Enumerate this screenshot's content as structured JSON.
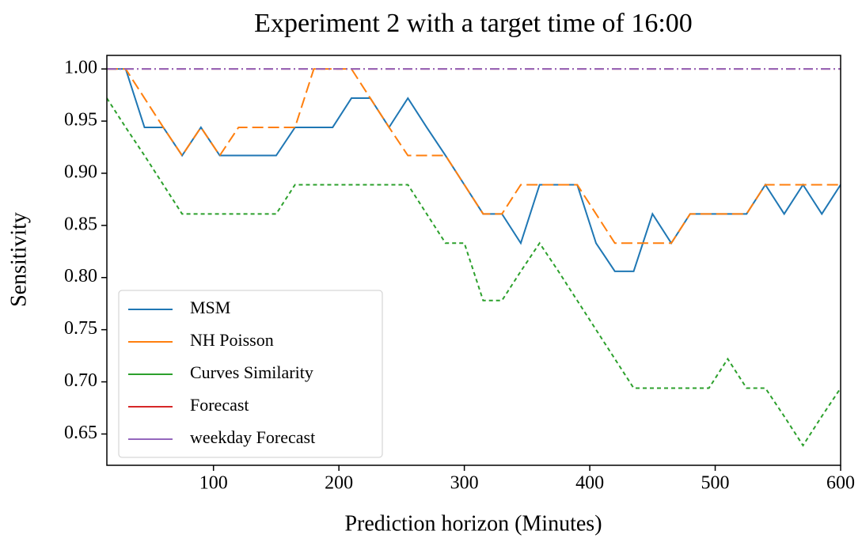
{
  "chart_data": {
    "type": "line",
    "title": "Experiment 2 with a target time of 16:00",
    "x_label": "Prediction horizon (Minutes)",
    "y_label": "Sensitivity",
    "x": [
      15,
      30,
      45,
      60,
      75,
      90,
      105,
      120,
      135,
      150,
      165,
      180,
      195,
      210,
      225,
      240,
      255,
      270,
      285,
      300,
      315,
      330,
      345,
      360,
      375,
      390,
      405,
      420,
      435,
      450,
      465,
      480,
      495,
      510,
      525,
      540,
      555,
      570,
      585,
      600
    ],
    "series": [
      {
        "name": "MSM",
        "color": "#1f77b4",
        "dash": "none",
        "values": [
          1.0,
          1.0,
          0.944,
          0.944,
          0.917,
          0.944,
          0.917,
          0.917,
          0.917,
          0.917,
          0.944,
          0.944,
          0.944,
          0.972,
          0.972,
          0.944,
          0.972,
          0.944,
          0.917,
          0.889,
          0.861,
          0.861,
          0.833,
          0.889,
          0.889,
          0.889,
          0.833,
          0.806,
          0.806,
          0.861,
          0.833,
          0.861,
          0.861,
          0.861,
          0.861,
          0.889,
          0.861,
          0.889,
          0.861,
          0.889
        ]
      },
      {
        "name": "NH Poisson",
        "color": "#ff7f0e",
        "dash": "14 6",
        "values": [
          1.0,
          1.0,
          0.972,
          0.944,
          0.917,
          0.944,
          0.917,
          0.944,
          0.944,
          0.944,
          0.944,
          1.0,
          1.0,
          1.0,
          0.972,
          0.944,
          0.917,
          0.917,
          0.917,
          0.889,
          0.861,
          0.861,
          0.889,
          0.889,
          0.889,
          0.889,
          0.861,
          0.833,
          0.833,
          0.833,
          0.833,
          0.861,
          0.861,
          0.861,
          0.861,
          0.889,
          0.889,
          0.889,
          0.889,
          0.889
        ]
      },
      {
        "name": "Curves Similarity",
        "color": "#2ca02c",
        "dash": "5 4",
        "values": [
          0.972,
          0.944,
          0.917,
          0.889,
          0.861,
          0.861,
          0.861,
          0.861,
          0.861,
          0.861,
          0.889,
          0.889,
          0.889,
          0.889,
          0.889,
          0.889,
          0.889,
          0.861,
          0.833,
          0.833,
          0.778,
          0.778,
          0.806,
          0.833,
          0.806,
          0.778,
          0.75,
          0.722,
          0.694,
          0.694,
          0.694,
          0.694,
          0.694,
          0.722,
          0.694,
          0.694,
          0.667,
          0.639,
          0.667,
          0.694
        ]
      },
      {
        "name": "Forecast",
        "color": "#d62728",
        "dash": "12 4 2 4",
        "values": [
          1.0,
          1.0,
          1.0,
          1.0,
          1.0,
          1.0,
          1.0,
          1.0,
          1.0,
          1.0,
          1.0,
          1.0,
          1.0,
          1.0,
          1.0,
          1.0,
          1.0,
          1.0,
          1.0,
          1.0,
          1.0,
          1.0,
          1.0,
          1.0,
          1.0,
          1.0,
          1.0,
          1.0,
          1.0,
          1.0,
          1.0,
          1.0,
          1.0,
          1.0,
          1.0,
          1.0,
          1.0,
          1.0,
          1.0,
          1.0
        ]
      },
      {
        "name": "weekday Forecast",
        "color": "#9467bd",
        "dash": "12 4 2 4",
        "values": [
          1.0,
          1.0,
          1.0,
          1.0,
          1.0,
          1.0,
          1.0,
          1.0,
          1.0,
          1.0,
          1.0,
          1.0,
          1.0,
          1.0,
          1.0,
          1.0,
          1.0,
          1.0,
          1.0,
          1.0,
          1.0,
          1.0,
          1.0,
          1.0,
          1.0,
          1.0,
          1.0,
          1.0,
          1.0,
          1.0,
          1.0,
          1.0,
          1.0,
          1.0,
          1.0,
          1.0,
          1.0,
          1.0,
          1.0,
          1.0
        ]
      }
    ],
    "xlim": [
      15,
      600
    ],
    "ylim": [
      0.62,
      1.013
    ],
    "xticks": [
      100,
      200,
      300,
      400,
      500,
      600
    ],
    "yticks": [
      0.65,
      {
        "value": 0.7,
        "label": "0.70"
      },
      0.75,
      {
        "value": 0.8,
        "label": "0.80"
      },
      0.85,
      {
        "value": 0.9,
        "label": "0.90"
      },
      0.95,
      {
        "value": 1.0,
        "label": "1.00"
      }
    ],
    "grid": false,
    "legend": "lower left"
  }
}
